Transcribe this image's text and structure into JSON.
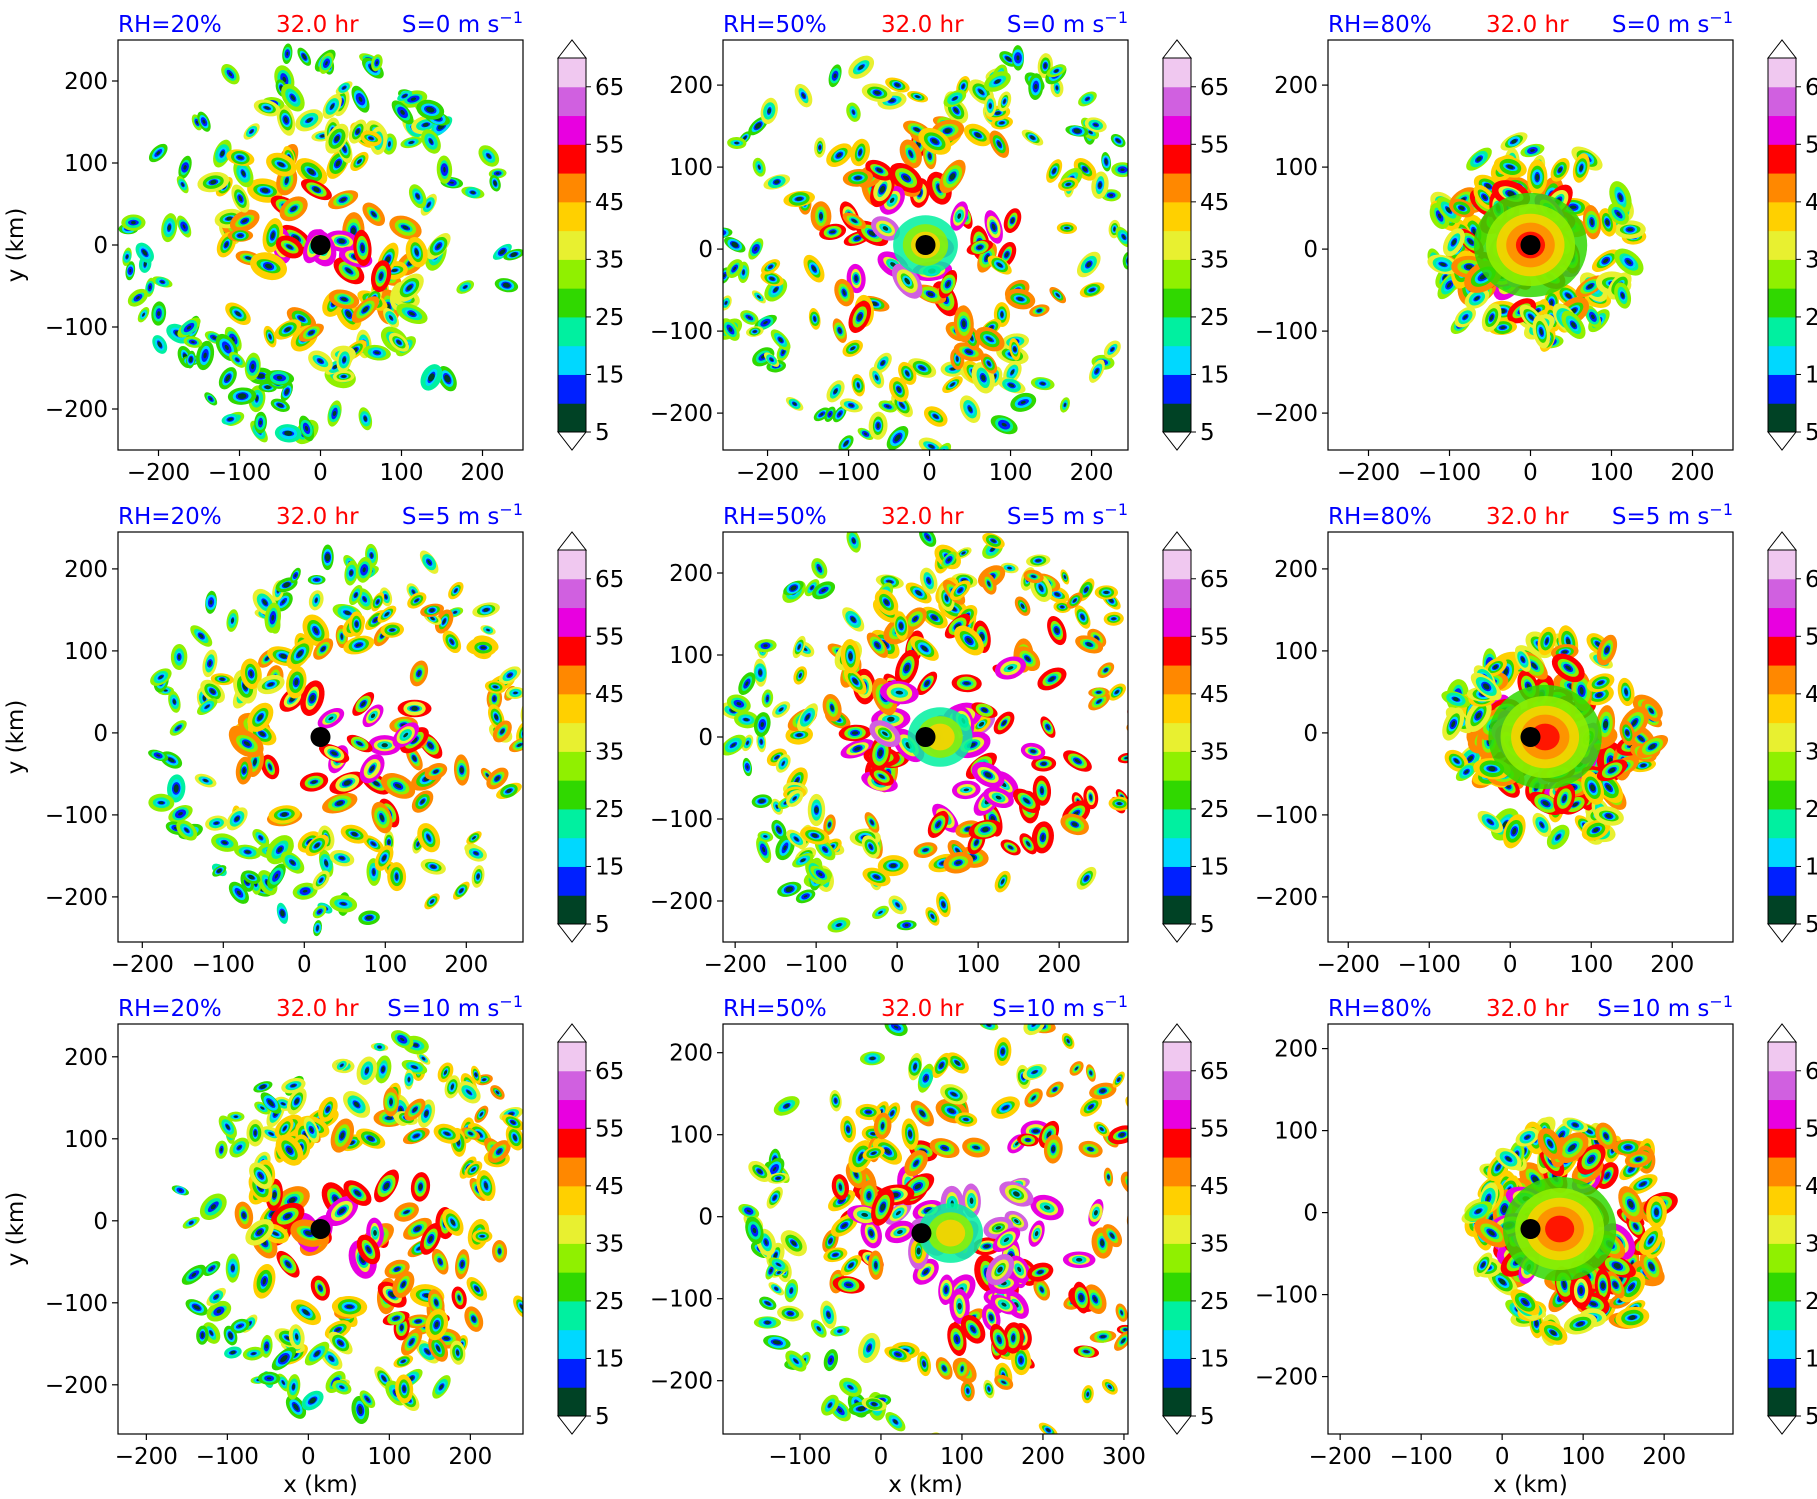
{
  "figure": {
    "colorbar": {
      "levels": [
        5,
        10,
        15,
        20,
        25,
        30,
        35,
        40,
        45,
        50,
        55,
        60,
        65,
        70
      ],
      "tick_labels": [
        "5",
        "15",
        "25",
        "35",
        "45",
        "55",
        "65"
      ],
      "colors": [
        "#004225",
        "#0020ff",
        "#00d8ff",
        "#00f0a0",
        "#30d800",
        "#90f000",
        "#e8f030",
        "#ffd000",
        "#ff8800",
        "#ff0000",
        "#e800e0",
        "#d060e0",
        "#f0c8f0"
      ],
      "extend": "both"
    },
    "center_marker_color": "#000000"
  },
  "chart_data": [
    {
      "type": "contourf",
      "panel": "a",
      "rh_label": "RH=20%",
      "time_label": "32.0 hr",
      "shear_label": "S=0 m s",
      "shear_unit_exp": "−1",
      "xlabel": "",
      "ylabel": "y (km)",
      "xlim": [
        -250,
        250
      ],
      "ylim": [
        -250,
        250
      ],
      "xticks": [
        -200,
        -100,
        0,
        100,
        200
      ],
      "yticks": [
        -200,
        -100,
        0,
        100,
        200
      ],
      "xtick_labels": [
        "−200",
        "−100",
        "0",
        "100",
        "200"
      ],
      "ytick_labels": [
        "−200",
        "−100",
        "0",
        "100",
        "200"
      ],
      "center": [
        0,
        0
      ]
    },
    {
      "type": "contourf",
      "panel": "b",
      "rh_label": "RH=50%",
      "time_label": "32.0 hr",
      "shear_label": "S=0 m s",
      "shear_unit_exp": "−1",
      "xlabel": "",
      "ylabel": "",
      "xlim": [
        -255,
        245
      ],
      "ylim": [
        -245,
        255
      ],
      "xticks": [
        -200,
        -100,
        0,
        100,
        200
      ],
      "yticks": [
        -200,
        -100,
        0,
        100,
        200
      ],
      "xtick_labels": [
        "−200",
        "−100",
        "0",
        "100",
        "200"
      ],
      "ytick_labels": [
        "−200",
        "−100",
        "0",
        "100",
        "200"
      ],
      "center": [
        -5,
        5
      ]
    },
    {
      "type": "contourf",
      "panel": "c",
      "rh_label": "RH=80%",
      "time_label": "32.0 hr",
      "shear_label": "S=0 m s",
      "shear_unit_exp": "−1",
      "xlabel": "",
      "ylabel": "",
      "xlim": [
        -250,
        250
      ],
      "ylim": [
        -245,
        255
      ],
      "xticks": [
        -200,
        -100,
        0,
        100,
        200
      ],
      "yticks": [
        -200,
        -100,
        0,
        100,
        200
      ],
      "xtick_labels": [
        "−200",
        "−100",
        "0",
        "100",
        "200"
      ],
      "ytick_labels": [
        "−200",
        "−100",
        "0",
        "100",
        "200"
      ],
      "center": [
        0,
        5
      ]
    },
    {
      "type": "contourf",
      "panel": "d",
      "rh_label": "RH=20%",
      "time_label": "32.0 hr",
      "shear_label": "S=5 m s",
      "shear_unit_exp": "−1",
      "xlabel": "",
      "ylabel": "y (km)",
      "xlim": [
        -230,
        270
      ],
      "ylim": [
        -255,
        245
      ],
      "xticks": [
        -200,
        -100,
        0,
        100,
        200
      ],
      "yticks": [
        -200,
        -100,
        0,
        100,
        200
      ],
      "xtick_labels": [
        "−200",
        "−100",
        "0",
        "100",
        "200"
      ],
      "ytick_labels": [
        "−200",
        "−100",
        "0",
        "100",
        "200"
      ],
      "center": [
        20,
        -5
      ]
    },
    {
      "type": "contourf",
      "panel": "e",
      "rh_label": "RH=50%",
      "time_label": "32.0 hr",
      "shear_label": "S=5 m s",
      "shear_unit_exp": "−1",
      "xlabel": "",
      "ylabel": "",
      "xlim": [
        -215,
        285
      ],
      "ylim": [
        -250,
        250
      ],
      "xticks": [
        -200,
        -100,
        0,
        100,
        200
      ],
      "yticks": [
        -200,
        -100,
        0,
        100,
        200
      ],
      "xtick_labels": [
        "−200",
        "−100",
        "0",
        "100",
        "200"
      ],
      "ytick_labels": [
        "−200",
        "−100",
        "0",
        "100",
        "200"
      ],
      "center": [
        35,
        0
      ]
    },
    {
      "type": "contourf",
      "panel": "f",
      "rh_label": "RH=80%",
      "time_label": "32.0 hr",
      "shear_label": "S=5 m s",
      "shear_unit_exp": "−1",
      "xlabel": "",
      "ylabel": "",
      "xlim": [
        -225,
        275
      ],
      "ylim": [
        -255,
        245
      ],
      "xticks": [
        -200,
        -100,
        0,
        100,
        200
      ],
      "yticks": [
        -200,
        -100,
        0,
        100,
        200
      ],
      "xtick_labels": [
        "−200",
        "−100",
        "0",
        "100",
        "200"
      ],
      "ytick_labels": [
        "−200",
        "−100",
        "0",
        "100",
        "200"
      ],
      "center": [
        25,
        -5
      ]
    },
    {
      "type": "contourf",
      "panel": "g",
      "rh_label": "RH=20%",
      "time_label": "32.0 hr",
      "shear_label": "S=10 m s",
      "shear_unit_exp": "−1",
      "xlabel": "x (km)",
      "ylabel": "y (km)",
      "xlim": [
        -235,
        265
      ],
      "ylim": [
        -260,
        240
      ],
      "xticks": [
        -200,
        -100,
        0,
        100,
        200
      ],
      "yticks": [
        -200,
        -100,
        0,
        100,
        200
      ],
      "xtick_labels": [
        "−200",
        "−100",
        "0",
        "100",
        "200"
      ],
      "ytick_labels": [
        "−200",
        "−100",
        "0",
        "100",
        "200"
      ],
      "center": [
        15,
        -10
      ]
    },
    {
      "type": "contourf",
      "panel": "h",
      "rh_label": "RH=50%",
      "time_label": "32.0 hr",
      "shear_label": "S=10 m s",
      "shear_unit_exp": "−1",
      "xlabel": "x (km)",
      "ylabel": "",
      "xlim": [
        -195,
        305
      ],
      "ylim": [
        -265,
        235
      ],
      "xticks": [
        -100,
        0,
        100,
        200,
        300
      ],
      "yticks": [
        -200,
        -100,
        0,
        100,
        200
      ],
      "xtick_labels": [
        "−100",
        "0",
        "100",
        "200",
        "300"
      ],
      "ytick_labels": [
        "−200",
        "−100",
        "0",
        "100",
        "200"
      ],
      "center": [
        50,
        -20
      ]
    },
    {
      "type": "contourf",
      "panel": "i",
      "rh_label": "RH=80%",
      "time_label": "32.0 hr",
      "shear_label": "S=10 m s",
      "shear_unit_exp": "−1",
      "xlabel": "x (km)",
      "ylabel": "",
      "xlim": [
        -215,
        285
      ],
      "ylim": [
        -270,
        230
      ],
      "xticks": [
        -200,
        -100,
        0,
        100,
        200
      ],
      "yticks": [
        -200,
        -100,
        0,
        100,
        200
      ],
      "xtick_labels": [
        "−200",
        "−100",
        "0",
        "100",
        "200"
      ],
      "ytick_labels": [
        "−200",
        "−100",
        "0",
        "100",
        "200"
      ],
      "center": [
        35,
        -20
      ]
    }
  ]
}
